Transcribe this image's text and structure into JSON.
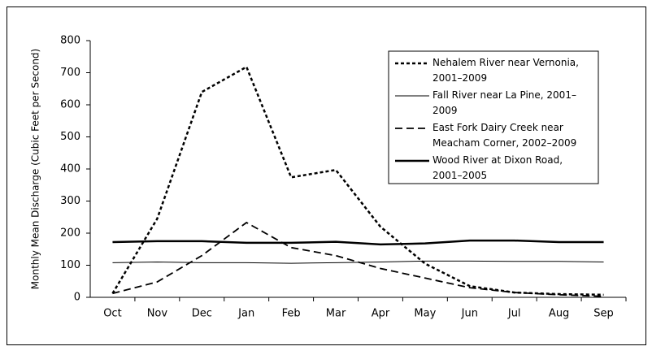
{
  "chart_data": {
    "type": "line",
    "y_label": "Monthly Mean Discharge (Cubic Feet per Second)",
    "categories": [
      "Oct",
      "Nov",
      "Dec",
      "Jan",
      "Feb",
      "Mar",
      "Apr",
      "May",
      "Jun",
      "Jul",
      "Aug",
      "Sep"
    ],
    "ylim": [
      0,
      800
    ],
    "yticks": [
      0,
      100,
      200,
      300,
      400,
      500,
      600,
      700,
      800
    ],
    "grid": false,
    "legend_position": "upper right",
    "series": [
      {
        "name": "Nehalem River near Vernonia, 2001–2009",
        "color": "#000000",
        "style": "dotted",
        "width": 2.5,
        "values": [
          12,
          245,
          640,
          718,
          374,
          397,
          220,
          105,
          35,
          15,
          10,
          8
        ]
      },
      {
        "name": "Fall River near La Pine, 2001–2009",
        "color": "#000000",
        "style": "solid",
        "width": 1,
        "values": [
          108,
          110,
          108,
          108,
          106,
          108,
          110,
          113,
          113,
          112,
          112,
          110
        ]
      },
      {
        "name": "East Fork Dairy Creek near Meacham Corner, 2002–2009",
        "color": "#000000",
        "style": "dashed",
        "width": 1.8,
        "values": [
          12,
          48,
          130,
          233,
          155,
          130,
          90,
          60,
          30,
          15,
          8,
          3
        ]
      },
      {
        "name": "Wood River at Dixon Road, 2001–2005",
        "color": "#000000",
        "style": "solid",
        "width": 2.5,
        "values": [
          172,
          175,
          175,
          170,
          170,
          173,
          165,
          168,
          177,
          177,
          172,
          172
        ]
      }
    ]
  }
}
